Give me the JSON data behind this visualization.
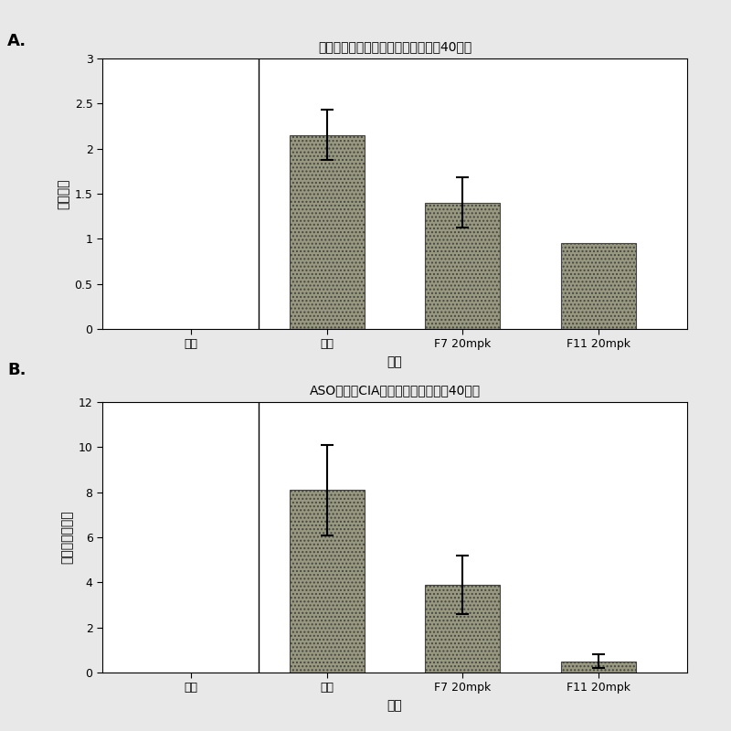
{
  "panel_A": {
    "title": "关节炎小鼠受累足爪的平均数量（第40天）",
    "ylabel": "受累足爪",
    "xlabel": "胶原",
    "categories": [
      "对照",
      "对照",
      "F7 20mpk",
      "F11 20mpk"
    ],
    "values": [
      0,
      2.15,
      1.4,
      0.95
    ],
    "errors": [
      0,
      0.28,
      0.28,
      0
    ],
    "ylim": [
      0,
      3
    ],
    "yticks": [
      0,
      0.5,
      1,
      1.5,
      2,
      2.5,
      3
    ],
    "bar_color": "#999980",
    "bar_positions": [
      0,
      1,
      2,
      3
    ],
    "show_bar": [
      false,
      true,
      true,
      true
    ]
  },
  "panel_B": {
    "title": "ASO治疗对CIA严重程度的影响（第40天）",
    "ylabel": "关节炎严重程度",
    "xlabel": "胶原",
    "categories": [
      "对照",
      "对照",
      "F7 20mpk",
      "F11 20mpk"
    ],
    "values": [
      0,
      8.1,
      3.9,
      0.5
    ],
    "errors": [
      0,
      2.0,
      1.3,
      0.3
    ],
    "ylim": [
      0,
      12
    ],
    "yticks": [
      0,
      2,
      4,
      6,
      8,
      10,
      12
    ],
    "bar_color": "#999980",
    "bar_positions": [
      0,
      1,
      2,
      3
    ],
    "show_bar": [
      false,
      true,
      true,
      true
    ]
  },
  "figure_bg": "#e8e8e8",
  "panel_bg": "#ffffff",
  "bar_width": 0.55,
  "label_fontsize": 10,
  "title_fontsize": 10,
  "tick_fontsize": 9,
  "ylabel_fontsize": 10
}
